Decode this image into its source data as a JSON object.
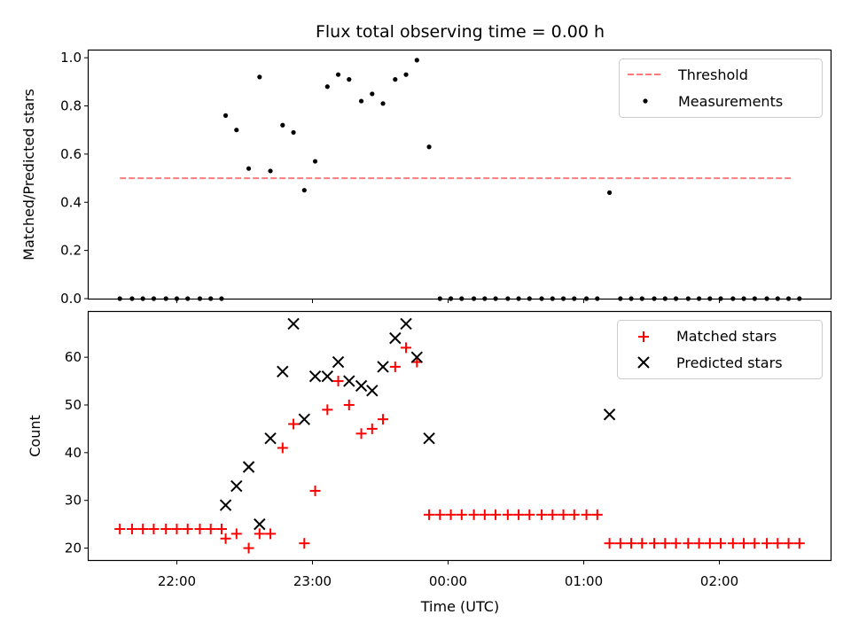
{
  "title": "Flux total observing time = 0.00 h",
  "x_axis": {
    "label": "Time (UTC)",
    "ticks": [
      {
        "value": 22.0,
        "label": "22:00"
      },
      {
        "value": 23.0,
        "label": "23:00"
      },
      {
        "value": 24.0,
        "label": "00:00"
      },
      {
        "value": 25.0,
        "label": "01:00"
      },
      {
        "value": 26.0,
        "label": "02:00"
      }
    ],
    "range": [
      21.35,
      26.82
    ]
  },
  "colors": {
    "threshold": "#ff7b7b",
    "measurements": "#000000",
    "matched": "#ff0000",
    "predicted": "#000000"
  },
  "chart_data": [
    {
      "type": "scatter",
      "ylabel": "Matched/Predicted stars",
      "ylim": [
        0.0,
        1.03
      ],
      "yticks": [
        {
          "value": 0.0,
          "label": "0.0"
        },
        {
          "value": 0.2,
          "label": "0.2"
        },
        {
          "value": 0.4,
          "label": "0.4"
        },
        {
          "value": 0.6,
          "label": "0.6"
        },
        {
          "value": 0.8,
          "label": "0.8"
        },
        {
          "value": 1.0,
          "label": "1.0"
        }
      ],
      "legend_placement": "upper right",
      "series": [
        {
          "name": "Threshold",
          "kind": "dashed-line",
          "x": [
            21.58,
            26.53
          ],
          "y": [
            0.5,
            0.5
          ]
        },
        {
          "name": "Measurements",
          "kind": "dot",
          "x": [
            21.58,
            21.67,
            21.75,
            21.83,
            21.92,
            22.0,
            22.08,
            22.17,
            22.25,
            22.33,
            22.36,
            22.44,
            22.53,
            22.61,
            22.69,
            22.78,
            22.86,
            22.94,
            23.02,
            23.11,
            23.19,
            23.27,
            23.36,
            23.44,
            23.52,
            23.61,
            23.69,
            23.77,
            23.86,
            23.94,
            24.02,
            24.1,
            24.19,
            24.27,
            24.35,
            24.44,
            24.52,
            24.6,
            24.69,
            24.77,
            24.85,
            24.93,
            25.02,
            25.1,
            25.19,
            25.27,
            25.35,
            25.43,
            25.52,
            25.6,
            25.68,
            25.77,
            25.85,
            25.93,
            26.01,
            26.1,
            26.18,
            26.26,
            26.35,
            26.43,
            26.51,
            26.59
          ],
          "y": [
            0,
            0,
            0,
            0,
            0,
            0,
            0,
            0,
            0,
            0,
            0.76,
            0.7,
            0.54,
            0.92,
            0.53,
            0.72,
            0.69,
            0.45,
            0.57,
            0.88,
            0.93,
            0.91,
            0.82,
            0.85,
            0.81,
            0.91,
            0.93,
            0.99,
            0.63,
            0,
            0,
            0,
            0,
            0,
            0,
            0,
            0,
            0,
            0,
            0,
            0,
            0,
            0,
            0,
            0.44,
            0,
            0,
            0,
            0,
            0,
            0,
            0,
            0,
            0,
            0,
            0,
            0,
            0,
            0,
            0,
            0,
            0
          ]
        }
      ]
    },
    {
      "type": "scatter",
      "ylabel": "Count",
      "ylim": [
        17.5,
        69.5
      ],
      "yticks": [
        {
          "value": 20,
          "label": "20"
        },
        {
          "value": 30,
          "label": "30"
        },
        {
          "value": 40,
          "label": "40"
        },
        {
          "value": 50,
          "label": "50"
        },
        {
          "value": 60,
          "label": "60"
        }
      ],
      "legend_placement": "upper right",
      "series": [
        {
          "name": "Matched stars",
          "kind": "plus",
          "x": [
            21.58,
            21.67,
            21.75,
            21.83,
            21.92,
            22.0,
            22.08,
            22.17,
            22.25,
            22.33,
            22.36,
            22.44,
            22.53,
            22.61,
            22.69,
            22.78,
            22.86,
            22.94,
            23.02,
            23.11,
            23.19,
            23.27,
            23.36,
            23.44,
            23.52,
            23.61,
            23.69,
            23.77,
            23.86,
            23.94,
            24.02,
            24.1,
            24.19,
            24.27,
            24.35,
            24.44,
            24.52,
            24.6,
            24.69,
            24.77,
            24.85,
            24.93,
            25.02,
            25.1,
            25.19,
            25.27,
            25.35,
            25.43,
            25.52,
            25.6,
            25.68,
            25.77,
            25.85,
            25.93,
            26.01,
            26.1,
            26.18,
            26.26,
            26.35,
            26.43,
            26.51,
            26.59
          ],
          "y": [
            24,
            24,
            24,
            24,
            24,
            24,
            24,
            24,
            24,
            24,
            22,
            23,
            20,
            23,
            23,
            41,
            46,
            21,
            32,
            49,
            55,
            50,
            44,
            45,
            47,
            58,
            62,
            59,
            27,
            27,
            27,
            27,
            27,
            27,
            27,
            27,
            27,
            27,
            27,
            27,
            27,
            27,
            27,
            27,
            21,
            21,
            21,
            21,
            21,
            21,
            21,
            21,
            21,
            21,
            21,
            21,
            21,
            21,
            21,
            21,
            21,
            21
          ]
        },
        {
          "name": "Predicted stars",
          "kind": "cross",
          "x": [
            22.36,
            22.44,
            22.53,
            22.61,
            22.69,
            22.78,
            22.86,
            22.94,
            23.02,
            23.11,
            23.19,
            23.27,
            23.36,
            23.44,
            23.52,
            23.61,
            23.69,
            23.77,
            23.86,
            25.19
          ],
          "y": [
            29,
            33,
            37,
            25,
            43,
            57,
            67,
            47,
            56,
            56,
            59,
            55,
            54,
            53,
            58,
            64,
            67,
            60,
            43,
            48
          ]
        }
      ]
    }
  ]
}
